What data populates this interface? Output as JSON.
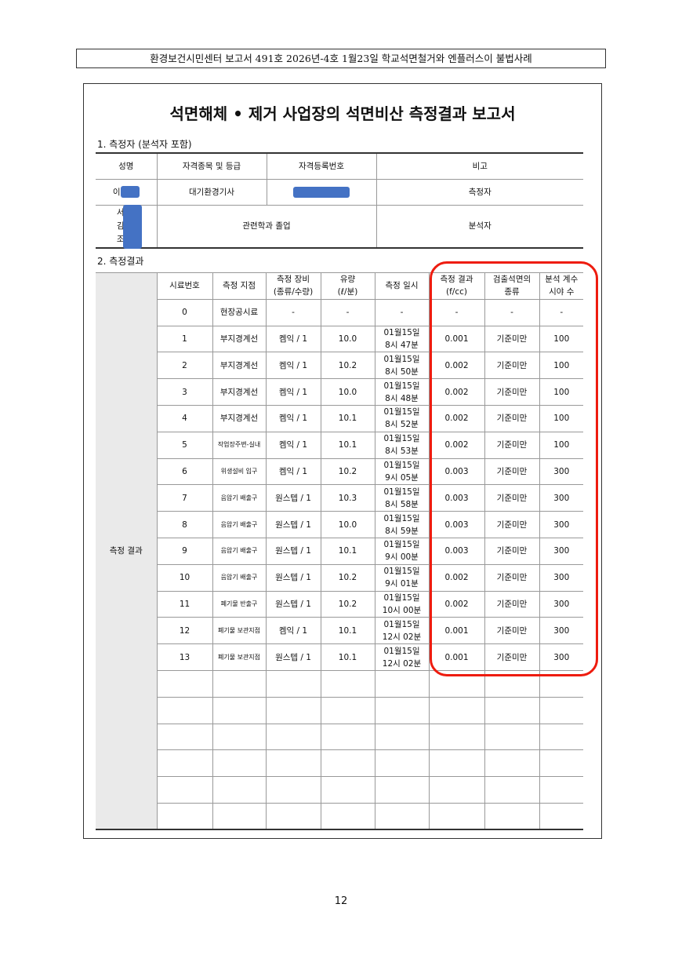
{
  "header": "환경보건시민센터 보고서 491호 2026년-4호 1월23일 학교석면철거와 엔플러스이 불법사례",
  "title": "석면해체 • 제거 사업장의 석면비산 측정결과 보고서",
  "section1": {
    "label": "1. 측정자 (분석자 포함)",
    "headers": [
      "성명",
      "자격종목 및 등급",
      "자격등록번호",
      "비고"
    ],
    "rows": [
      {
        "name": "이",
        "qual": "대기환경기사",
        "role": "측정자"
      },
      {
        "names": [
          "서",
          "김",
          "조"
        ],
        "qual": "관련학과 졸업",
        "role": "분석자"
      }
    ]
  },
  "section2": {
    "label": "2. 측정결과",
    "side_label": "측정 결과",
    "headers": [
      "시료번호",
      "측정 지점",
      "측정 장비\n(종류/수량)",
      "유량\n(ℓ/분)",
      "측정 일시",
      "측정 결과\n(f/cc)",
      "검출석면의\n종류",
      "분석 계수\n시야 수"
    ],
    "rows": [
      [
        "0",
        "현장공시료",
        "-",
        "-",
        "-",
        "-",
        "-",
        "-"
      ],
      [
        "1",
        "부지경계선",
        "켐익 / 1",
        "10.0",
        "01월15일\n8시 47분",
        "0.001",
        "기준미만",
        "100"
      ],
      [
        "2",
        "부지경계선",
        "켐익 / 1",
        "10.2",
        "01월15일\n8시 50분",
        "0.002",
        "기준미만",
        "100"
      ],
      [
        "3",
        "부지경계선",
        "켐익 / 1",
        "10.0",
        "01월15일\n8시 48분",
        "0.002",
        "기준미만",
        "100"
      ],
      [
        "4",
        "부지경계선",
        "켐익 / 1",
        "10.1",
        "01월15일\n8시 52분",
        "0.002",
        "기준미만",
        "100"
      ],
      [
        "5",
        "작업장주변-실내",
        "켐익 / 1",
        "10.1",
        "01월15일\n8시 53분",
        "0.002",
        "기준미만",
        "100"
      ],
      [
        "6",
        "위생설비 입구",
        "켐익 / 1",
        "10.2",
        "01월15일\n9시 05분",
        "0.003",
        "기준미만",
        "300"
      ],
      [
        "7",
        "음압기 배출구",
        "원스텝 / 1",
        "10.3",
        "01월15일\n8시 58분",
        "0.003",
        "기준미만",
        "300"
      ],
      [
        "8",
        "음압기 배출구",
        "원스텝 / 1",
        "10.0",
        "01월15일\n8시 59분",
        "0.003",
        "기준미만",
        "300"
      ],
      [
        "9",
        "음압기 배출구",
        "원스텝 / 1",
        "10.1",
        "01월15일\n9시 00분",
        "0.003",
        "기준미만",
        "300"
      ],
      [
        "10",
        "음압기 배출구",
        "원스텝 / 1",
        "10.2",
        "01월15일\n9시 01분",
        "0.002",
        "기준미만",
        "300"
      ],
      [
        "11",
        "폐기물 반출구",
        "원스텝 / 1",
        "10.2",
        "01월15일\n10시 00분",
        "0.002",
        "기준미만",
        "300"
      ],
      [
        "12",
        "폐기물 보관지점",
        "켐익 / 1",
        "10.1",
        "01월15일\n12시 02분",
        "0.001",
        "기준미만",
        "300"
      ],
      [
        "13",
        "폐기물 보관지점",
        "원스텝 / 1",
        "10.1",
        "01월15일\n12시 02분",
        "0.001",
        "기준미만",
        "300"
      ]
    ],
    "empty_rows": 6
  },
  "highlight_color": "#ee1c0f",
  "redaction_color": "#4472c4",
  "page_number": "12"
}
